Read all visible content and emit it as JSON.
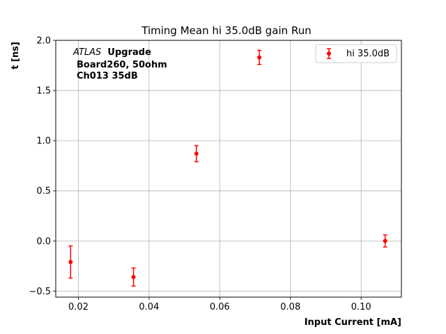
{
  "chart_data": {
    "type": "scatter",
    "title": "Timing Mean hi 35.0dB gain Run",
    "xlabel": "Input Current [mA]",
    "ylabel": "t [ns]",
    "xlim": [
      0.0136,
      0.1114
    ],
    "ylim": [
      -0.56,
      2.0
    ],
    "xticks": [
      0.02,
      0.04,
      0.06,
      0.08,
      0.1
    ],
    "xtick_labels": [
      "0.02",
      "0.04",
      "0.06",
      "0.08",
      "0.10"
    ],
    "yticks": [
      -0.5,
      0.0,
      0.5,
      1.0,
      1.5,
      2.0
    ],
    "ytick_labels": [
      "−0.5",
      "0.0",
      "0.5",
      "1.0",
      "1.5",
      "2.0"
    ],
    "grid": true,
    "legend_position": "top-right",
    "series": [
      {
        "name": "hi 35.0dB",
        "color": "#ff0000",
        "marker": "circle",
        "points": [
          {
            "x": 0.0178,
            "y": -0.21,
            "yerr": 0.16
          },
          {
            "x": 0.0356,
            "y": -0.36,
            "yerr": 0.09
          },
          {
            "x": 0.0534,
            "y": 0.87,
            "yerr": 0.08
          },
          {
            "x": 0.0712,
            "y": 1.83,
            "yerr": 0.07
          },
          {
            "x": 0.1068,
            "y": 0.0,
            "yerr": 0.06
          }
        ]
      }
    ],
    "annotation": {
      "experiment": "ATLAS",
      "tag": "Upgrade",
      "line2": "Board260, 50ohm",
      "line3": "Ch013 35dB"
    }
  }
}
